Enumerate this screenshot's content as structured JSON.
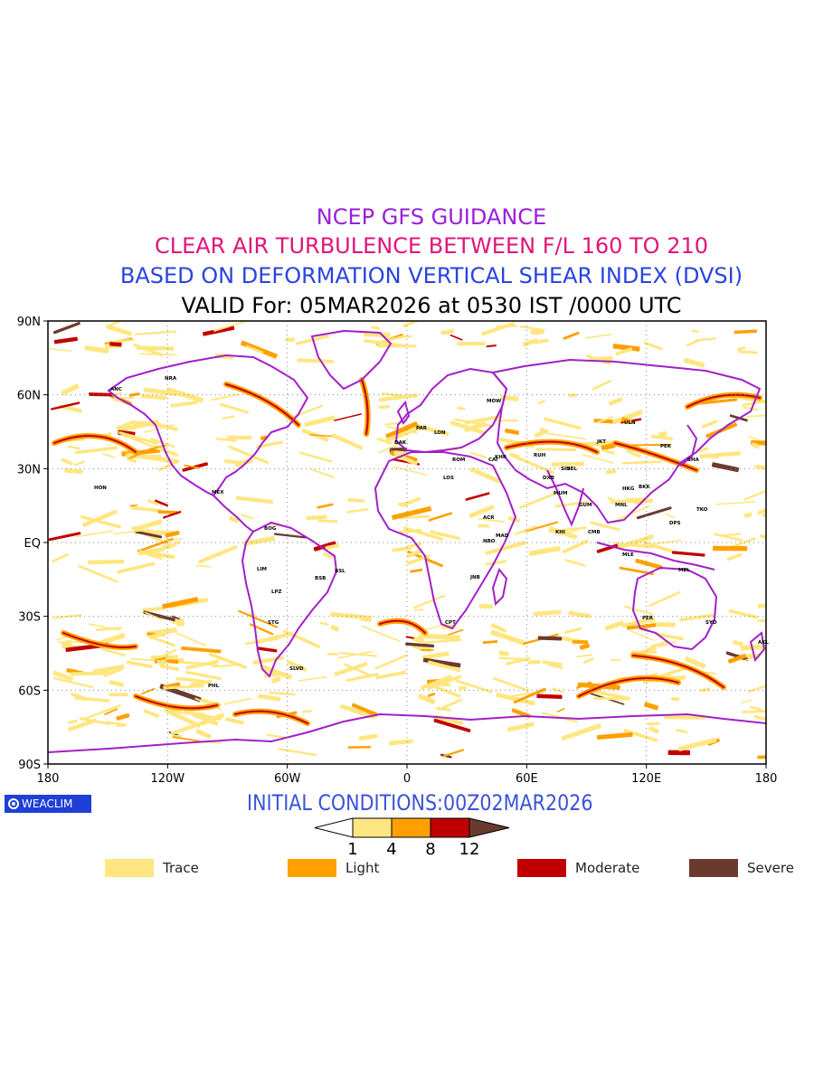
{
  "titles": {
    "line1": "NCEP GFS GUIDANCE",
    "line2": "CLEAR AIR TURBULENCE BETWEEN F/L 160 TO 210",
    "line3": "BASED ON DEFORMATION VERTICAL SHEAR INDEX (DVSI)",
    "line4": "VALID For: 05MAR2026 at 0530 IST /0000 UTC"
  },
  "colors": {
    "line1": "#9a1fd6",
    "line2": "#e0157a",
    "line3": "#2a43e0",
    "line4": "#000000",
    "coastline": "#a31fc7",
    "trace": "#ffe680",
    "light": "#ffa000",
    "moderate": "#c00000",
    "severe": "#6b3a2e"
  },
  "axes": {
    "y_ticks": [
      "90N",
      "60N",
      "30N",
      "EQ",
      "30S",
      "60S",
      "90S"
    ],
    "x_ticks": [
      "180",
      "120W",
      "60W",
      "0",
      "60E",
      "120E",
      "180"
    ]
  },
  "logo": {
    "text": "WEACLIM"
  },
  "initial_conditions": "INITIAL CONDITIONS:00Z02MAR2026",
  "colorbar": {
    "ticks": [
      "1",
      "4",
      "8",
      "12"
    ]
  },
  "legend": [
    {
      "label": "Trace",
      "color": "#ffe680"
    },
    {
      "label": "Light",
      "color": "#ffa000"
    },
    {
      "label": "Moderate",
      "color": "#c00000"
    },
    {
      "label": "Severe",
      "color": "#6b3a2e"
    }
  ],
  "stations": [
    "ANC",
    "NRA",
    "HON",
    "MEX",
    "BOG",
    "LIM",
    "LPZ",
    "STG",
    "BSB",
    "BSL",
    "SLVD",
    "PHL",
    "DAK",
    "LOS",
    "ACR",
    "NBO",
    "JNB",
    "CPT",
    "MAD",
    "KHR",
    "MUM",
    "DEL",
    "BKK",
    "HKG",
    "MNL",
    "TKO",
    "SHA",
    "PEK",
    "ULN",
    "SYD",
    "PER",
    "MEL",
    "AKL",
    "MOW",
    "LON",
    "PAR",
    "ROM",
    "CAI",
    "RUH",
    "DXB",
    "KHI",
    "CMB",
    "MLE",
    "GUM",
    "DPS",
    "JKT",
    "SIN"
  ]
}
